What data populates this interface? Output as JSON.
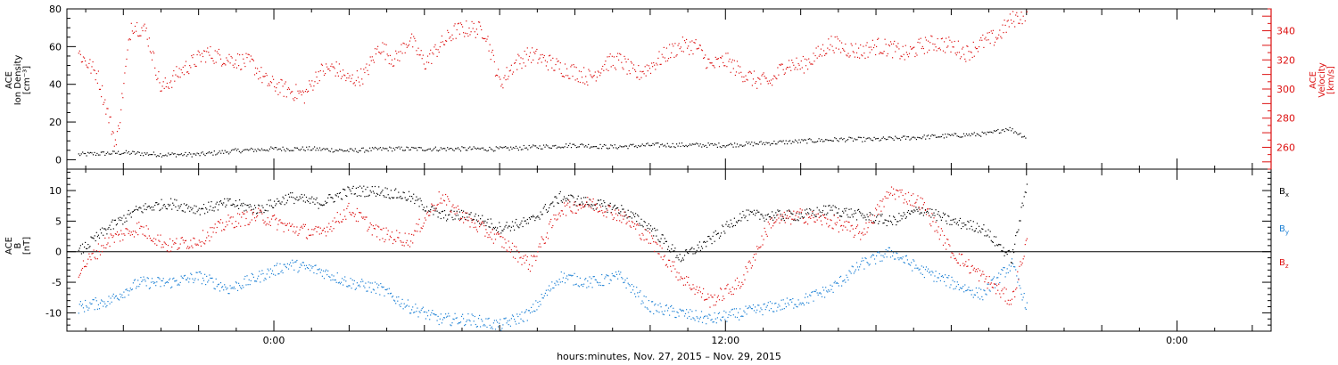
{
  "chart_data": [
    {
      "type": "scatter",
      "panel": "top",
      "left_axis": {
        "label": [
          "ACE",
          "Ion Density",
          "[cm⁻³]"
        ],
        "ylim": [
          -5,
          80
        ],
        "ticks": [
          0,
          20,
          40,
          60,
          80
        ],
        "color": "#000000"
      },
      "right_axis": {
        "label": [
          "ACE",
          "Velocity",
          "[km/s]"
        ],
        "ylim": [
          245,
          355
        ],
        "ticks": [
          260,
          280,
          300,
          320,
          340
        ],
        "color": "#dd1111"
      },
      "series": [
        {
          "axis": "left",
          "color": "#000000",
          "x": [
            -5.2,
            -4,
            -3,
            -2,
            -1,
            0,
            1,
            2,
            3,
            4,
            5,
            6,
            7,
            8,
            9,
            10,
            11,
            12,
            13,
            14,
            15,
            16,
            17,
            18,
            19,
            19.5,
            20
          ],
          "y": [
            3,
            4,
            3,
            3,
            5,
            6,
            6,
            5,
            6,
            6,
            6,
            6,
            7,
            8,
            7,
            8,
            8,
            8,
            9,
            10,
            11,
            11,
            12,
            13,
            14,
            17,
            12
          ]
        },
        {
          "axis": "right",
          "color": "#dd1111",
          "x": [
            -5.2,
            -4.7,
            -4.2,
            -3.8,
            -3.4,
            -3.0,
            -2.6,
            -2.2,
            -1.8,
            -1.4,
            -1.0,
            -0.6,
            -0.2,
            0.3,
            0.8,
            1.2,
            1.6,
            2.0,
            2.4,
            2.8,
            3.2,
            3.6,
            4.0,
            4.4,
            4.8,
            5.2,
            5.6,
            6.0,
            6.4,
            6.8,
            7.2,
            7.6,
            8.0,
            8.4,
            8.8,
            9.2,
            9.6,
            10.0,
            10.4,
            10.8,
            11.2,
            11.6,
            12.0,
            12.4,
            12.8,
            13.2,
            13.6,
            14.0,
            14.4,
            14.8,
            15.2,
            15.6,
            16.0,
            16.4,
            16.8,
            17.2,
            17.6,
            18.0,
            18.4,
            18.8,
            19.2,
            19.6,
            20.0
          ],
          "y": [
            325,
            310,
            262,
            345,
            340,
            300,
            310,
            318,
            325,
            322,
            320,
            318,
            305,
            300,
            296,
            312,
            315,
            306,
            310,
            330,
            320,
            335,
            318,
            330,
            340,
            342,
            340,
            304,
            318,
            324,
            320,
            315,
            312,
            308,
            318,
            320,
            310,
            316,
            324,
            330,
            330,
            316,
            320,
            312,
            306,
            305,
            318,
            316,
            323,
            332,
            328,
            326,
            330,
            328,
            324,
            330,
            332,
            330,
            325,
            332,
            336,
            348,
            352
          ]
        }
      ]
    },
    {
      "type": "scatter",
      "panel": "bottom",
      "left_axis": {
        "label": [
          "ACE",
          "B",
          "[nT]"
        ],
        "ylim": [
          -13,
          13.5
        ],
        "ticks": [
          -10,
          -5,
          0,
          5,
          10
        ],
        "color": "#000000"
      },
      "zero_line": true,
      "legend": [
        {
          "label": "B",
          "sub": "x",
          "color": "#000000"
        },
        {
          "label": "B",
          "sub": "y",
          "color": "#1a7fd4"
        },
        {
          "label": "B",
          "sub": "z",
          "color": "#dd1111"
        }
      ],
      "series": [
        {
          "name": "Bx",
          "color": "#000000",
          "x": [
            -5.2,
            -4.4,
            -3.6,
            -2.8,
            -2.0,
            -1.2,
            -0.4,
            0.4,
            1.2,
            2.0,
            2.8,
            3.6,
            4.4,
            5.2,
            6.0,
            6.8,
            7.6,
            8.4,
            9.2,
            10.0,
            10.8,
            11.6,
            12.4,
            13.2,
            14.0,
            14.8,
            15.6,
            16.4,
            17.2,
            18.0,
            18.8,
            19.6,
            20.0
          ],
          "y": [
            0,
            4,
            7,
            8,
            7,
            8,
            7,
            9,
            8,
            10,
            10,
            9,
            6,
            6,
            4,
            5,
            9,
            8,
            7,
            4,
            -1,
            2,
            6,
            6,
            6,
            7,
            6,
            5,
            7,
            5,
            4,
            -1,
            11
          ]
        },
        {
          "name": "By",
          "color": "#1a7fd4",
          "x": [
            -5.2,
            -4.4,
            -3.6,
            -2.8,
            -2.0,
            -1.2,
            -0.4,
            0.4,
            1.2,
            2.0,
            2.8,
            3.6,
            4.4,
            5.2,
            6.0,
            6.8,
            7.6,
            8.4,
            9.2,
            10.0,
            10.8,
            11.6,
            12.4,
            13.2,
            14.0,
            14.8,
            15.6,
            16.4,
            17.2,
            18.0,
            18.8,
            19.6,
            20.0
          ],
          "y": [
            -9,
            -8,
            -5,
            -5,
            -4,
            -6,
            -4,
            -2,
            -3,
            -5,
            -6,
            -9,
            -11,
            -11,
            -12,
            -10,
            -4,
            -5,
            -4,
            -9,
            -10,
            -11,
            -10,
            -9,
            -8,
            -6,
            -2,
            0,
            -3,
            -5,
            -7,
            -2,
            -9
          ]
        },
        {
          "name": "Bz",
          "color": "#dd1111",
          "x": [
            -5.2,
            -4.4,
            -3.6,
            -2.8,
            -2.0,
            -1.2,
            -0.4,
            0.4,
            1.2,
            2.0,
            2.8,
            3.6,
            4.4,
            5.2,
            6.0,
            6.8,
            7.6,
            8.4,
            9.2,
            10.0,
            10.8,
            11.6,
            12.4,
            13.2,
            14.0,
            14.8,
            15.6,
            16.4,
            17.2,
            18.0,
            18.8,
            19.6,
            20.0
          ],
          "y": [
            -3,
            2,
            4,
            1,
            2,
            5,
            6,
            4,
            3,
            7,
            3,
            2,
            9,
            5,
            2,
            -2,
            7,
            8,
            6,
            2,
            -4,
            -8,
            -5,
            5,
            6,
            5,
            3,
            10,
            8,
            0,
            -4,
            -8,
            2
          ]
        }
      ]
    }
  ],
  "x_axis": {
    "label": "hours:minutes, Nov. 27, 2015 – Nov. 29, 2015",
    "xlim": [
      -5.5,
      26.5
    ],
    "tick_labels": [
      {
        "x": 0,
        "text": "0:00"
      },
      {
        "x": 12,
        "text": "12:00"
      },
      {
        "x": 24,
        "text": "0:00"
      }
    ]
  }
}
